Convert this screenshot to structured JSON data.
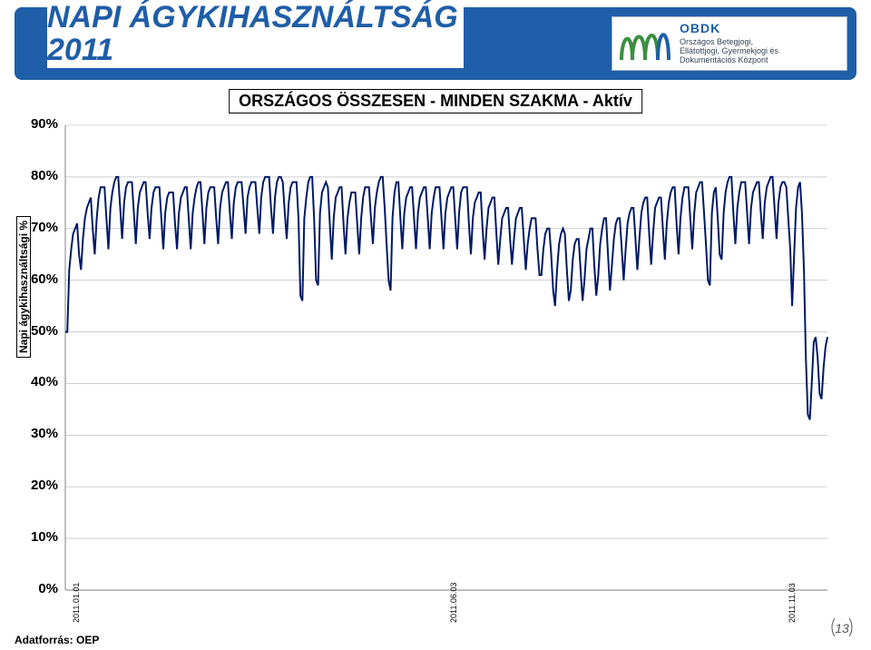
{
  "title": {
    "line1": "NAPI ÁGYKIHASZNÁLTSÁG",
    "line2": "2011",
    "subtitle": "ORSZÁGOS ÖSSZESEN - MINDEN SZAKMA - Aktív"
  },
  "logo": {
    "brand": "OBDK",
    "line1": "Országos Betegjogi,",
    "line2": "Ellátottjogi, Gyermekjogi és",
    "line3": "Dokumentációs Központ",
    "colors": [
      "#3a8f3f",
      "#3a8f3f",
      "#3a8f3f",
      "#1f5ea8"
    ]
  },
  "chart": {
    "type": "line",
    "ylabel": "Napi ágykihasználtsági %",
    "background_color": "#ffffff",
    "grid_color": "#b0b0b0",
    "axis_color": "#808080",
    "line_color": "#001a66",
    "line_width": 2,
    "ylim": [
      0,
      90
    ],
    "ytick_step": 10,
    "ytick_fontsize": 15,
    "yticks": [
      "0%",
      "10%",
      "20%",
      "30%",
      "40%",
      "50%",
      "60%",
      "70%",
      "80%",
      "90%"
    ],
    "x_ticks": [
      {
        "pos": 0.005,
        "label": "2011.01.01"
      },
      {
        "pos": 0.5,
        "label": "2011.06.03"
      },
      {
        "pos": 0.944,
        "label": "2011.11.03"
      }
    ],
    "series": [
      50,
      50,
      62,
      66,
      69,
      70,
      71,
      65,
      62,
      68,
      72,
      74,
      75,
      76,
      70,
      65,
      72,
      76,
      78,
      78,
      78,
      72,
      66,
      74,
      77,
      79,
      80,
      80,
      74,
      68,
      75,
      78,
      79,
      79,
      79,
      73,
      67,
      74,
      77,
      78,
      79,
      79,
      73,
      68,
      74,
      77,
      78,
      78,
      78,
      72,
      66,
      73,
      76,
      77,
      77,
      77,
      71,
      66,
      73,
      76,
      77,
      78,
      78,
      72,
      66,
      73,
      76,
      78,
      79,
      79,
      73,
      67,
      74,
      77,
      78,
      78,
      78,
      72,
      67,
      74,
      77,
      78,
      79,
      79,
      73,
      68,
      75,
      78,
      79,
      79,
      79,
      74,
      69,
      76,
      78,
      79,
      79,
      79,
      74,
      69,
      76,
      79,
      80,
      80,
      80,
      74,
      69,
      76,
      79,
      80,
      80,
      79,
      73,
      68,
      75,
      78,
      79,
      79,
      79,
      72,
      57,
      56,
      72,
      76,
      79,
      80,
      80,
      72,
      60,
      59,
      73,
      77,
      78,
      79,
      78,
      71,
      64,
      72,
      76,
      77,
      78,
      78,
      71,
      65,
      72,
      75,
      77,
      77,
      77,
      71,
      65,
      72,
      76,
      78,
      78,
      78,
      72,
      67,
      74,
      77,
      79,
      80,
      80,
      74,
      67,
      60,
      58,
      72,
      77,
      79,
      79,
      72,
      66,
      73,
      76,
      77,
      78,
      78,
      72,
      66,
      73,
      76,
      77,
      78,
      78,
      72,
      66,
      73,
      76,
      78,
      78,
      78,
      72,
      66,
      73,
      76,
      77,
      78,
      78,
      72,
      66,
      73,
      77,
      78,
      78,
      78,
      71,
      65,
      72,
      75,
      76,
      77,
      77,
      70,
      64,
      70,
      74,
      75,
      76,
      76,
      69,
      63,
      68,
      72,
      73,
      74,
      74,
      68,
      63,
      68,
      72,
      73,
      74,
      74,
      68,
      62,
      67,
      70,
      72,
      72,
      72,
      66,
      61,
      61,
      66,
      69,
      70,
      70,
      65,
      58,
      55,
      62,
      67,
      69,
      70,
      69,
      62,
      56,
      58,
      64,
      67,
      68,
      68,
      62,
      56,
      60,
      66,
      68,
      70,
      70,
      63,
      57,
      61,
      67,
      70,
      72,
      72,
      65,
      58,
      63,
      68,
      71,
      72,
      72,
      66,
      60,
      66,
      71,
      73,
      74,
      74,
      68,
      62,
      68,
      73,
      75,
      76,
      76,
      69,
      63,
      69,
      74,
      75,
      76,
      76,
      70,
      64,
      71,
      75,
      77,
      78,
      78,
      71,
      65,
      72,
      76,
      78,
      78,
      78,
      72,
      66,
      73,
      77,
      78,
      79,
      79,
      73,
      67,
      60,
      59,
      73,
      77,
      78,
      72,
      65,
      64,
      73,
      77,
      79,
      80,
      80,
      73,
      67,
      74,
      77,
      79,
      79,
      79,
      73,
      67,
      74,
      77,
      78,
      79,
      79,
      73,
      68,
      75,
      78,
      79,
      80,
      80,
      74,
      68,
      75,
      78,
      79,
      79,
      78,
      72,
      66,
      55,
      65,
      74,
      78,
      79,
      73,
      62,
      45,
      34,
      33,
      40,
      48,
      49,
      45,
      38,
      37,
      43,
      47,
      49
    ]
  },
  "footer": "Adatforrás: OEP",
  "slide_number": "13"
}
